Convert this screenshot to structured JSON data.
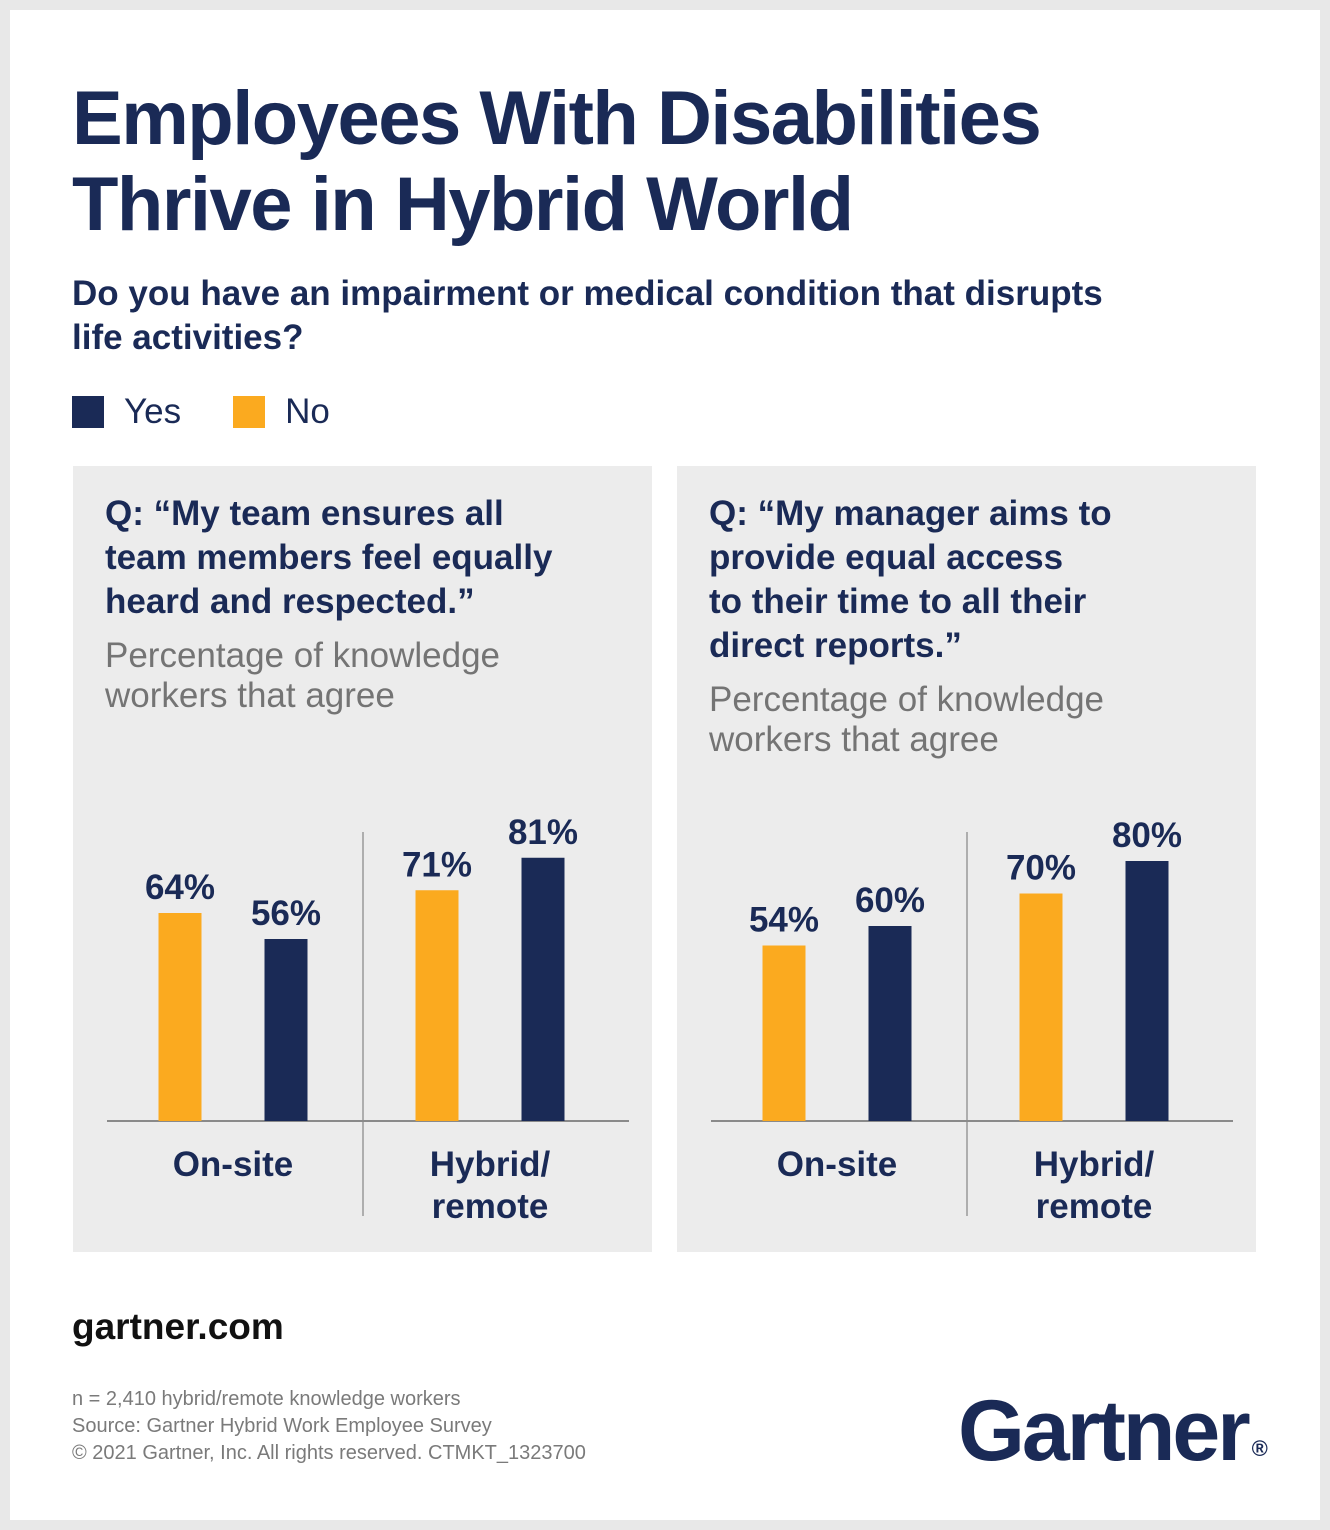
{
  "title_lines": [
    "Employees With Disabilities",
    "Thrive in Hybrid World"
  ],
  "subtitle_lines": [
    "Do you have an impairment or medical condition that disrupts",
    "life activities?"
  ],
  "legend": [
    {
      "label": "Yes",
      "color": "#1a2a56"
    },
    {
      "label": "No",
      "color": "#fbaa1f"
    }
  ],
  "panels": [
    {
      "question_lines": [
        "Q: “My team ensures all",
        "team members feel equally",
        "heard and respected.”"
      ],
      "measure_lines": [
        "Percentage of knowledge",
        "workers that agree"
      ]
    },
    {
      "question_lines": [
        "Q: “My manager aims to",
        "provide equal access",
        "to their time to all their",
        "direct reports.”"
      ],
      "measure_lines": [
        "Percentage of knowledge",
        "workers that agree"
      ]
    }
  ],
  "chart_data": [
    {
      "type": "bar",
      "title": "Q: “My team ensures all team members feel equally heard and respected.”",
      "ylabel": "Percentage of knowledge workers that agree",
      "categories": [
        "On-site",
        "Hybrid/ remote"
      ],
      "category_lines": [
        [
          "On-site"
        ],
        [
          "Hybrid/",
          "remote"
        ]
      ],
      "series": [
        {
          "name": "No",
          "color": "#fbaa1f",
          "values": [
            64,
            71
          ],
          "labels": [
            "64%",
            "71%"
          ]
        },
        {
          "name": "Yes",
          "color": "#1a2a56",
          "values": [
            56,
            81
          ],
          "labels": [
            "56%",
            "81%"
          ]
        }
      ],
      "ylim": [
        0,
        100
      ],
      "grid": false,
      "legend_position": "top-left"
    },
    {
      "type": "bar",
      "title": "Q: “My manager aims to provide equal access to their time to all their direct reports.”",
      "ylabel": "Percentage of knowledge workers that agree",
      "categories": [
        "On-site",
        "Hybrid/ remote"
      ],
      "category_lines": [
        [
          "On-site"
        ],
        [
          "Hybrid/",
          "remote"
        ]
      ],
      "series": [
        {
          "name": "No",
          "color": "#fbaa1f",
          "values": [
            54,
            70
          ],
          "labels": [
            "54%",
            "70%"
          ]
        },
        {
          "name": "Yes",
          "color": "#1a2a56",
          "values": [
            60,
            80
          ],
          "labels": [
            "60%",
            "80%"
          ]
        }
      ],
      "ylim": [
        0,
        100
      ],
      "grid": false,
      "legend_position": "top-left"
    }
  ],
  "footer": {
    "site": "gartner.com",
    "notes": [
      "n = 2,410 hybrid/remote knowledge workers",
      "Source: Gartner Hybrid Work Employee Survey",
      "© 2021 Gartner, Inc. All rights reserved. CTMKT_1323700"
    ],
    "logo_text": "Gartner",
    "logo_mark": "®"
  }
}
